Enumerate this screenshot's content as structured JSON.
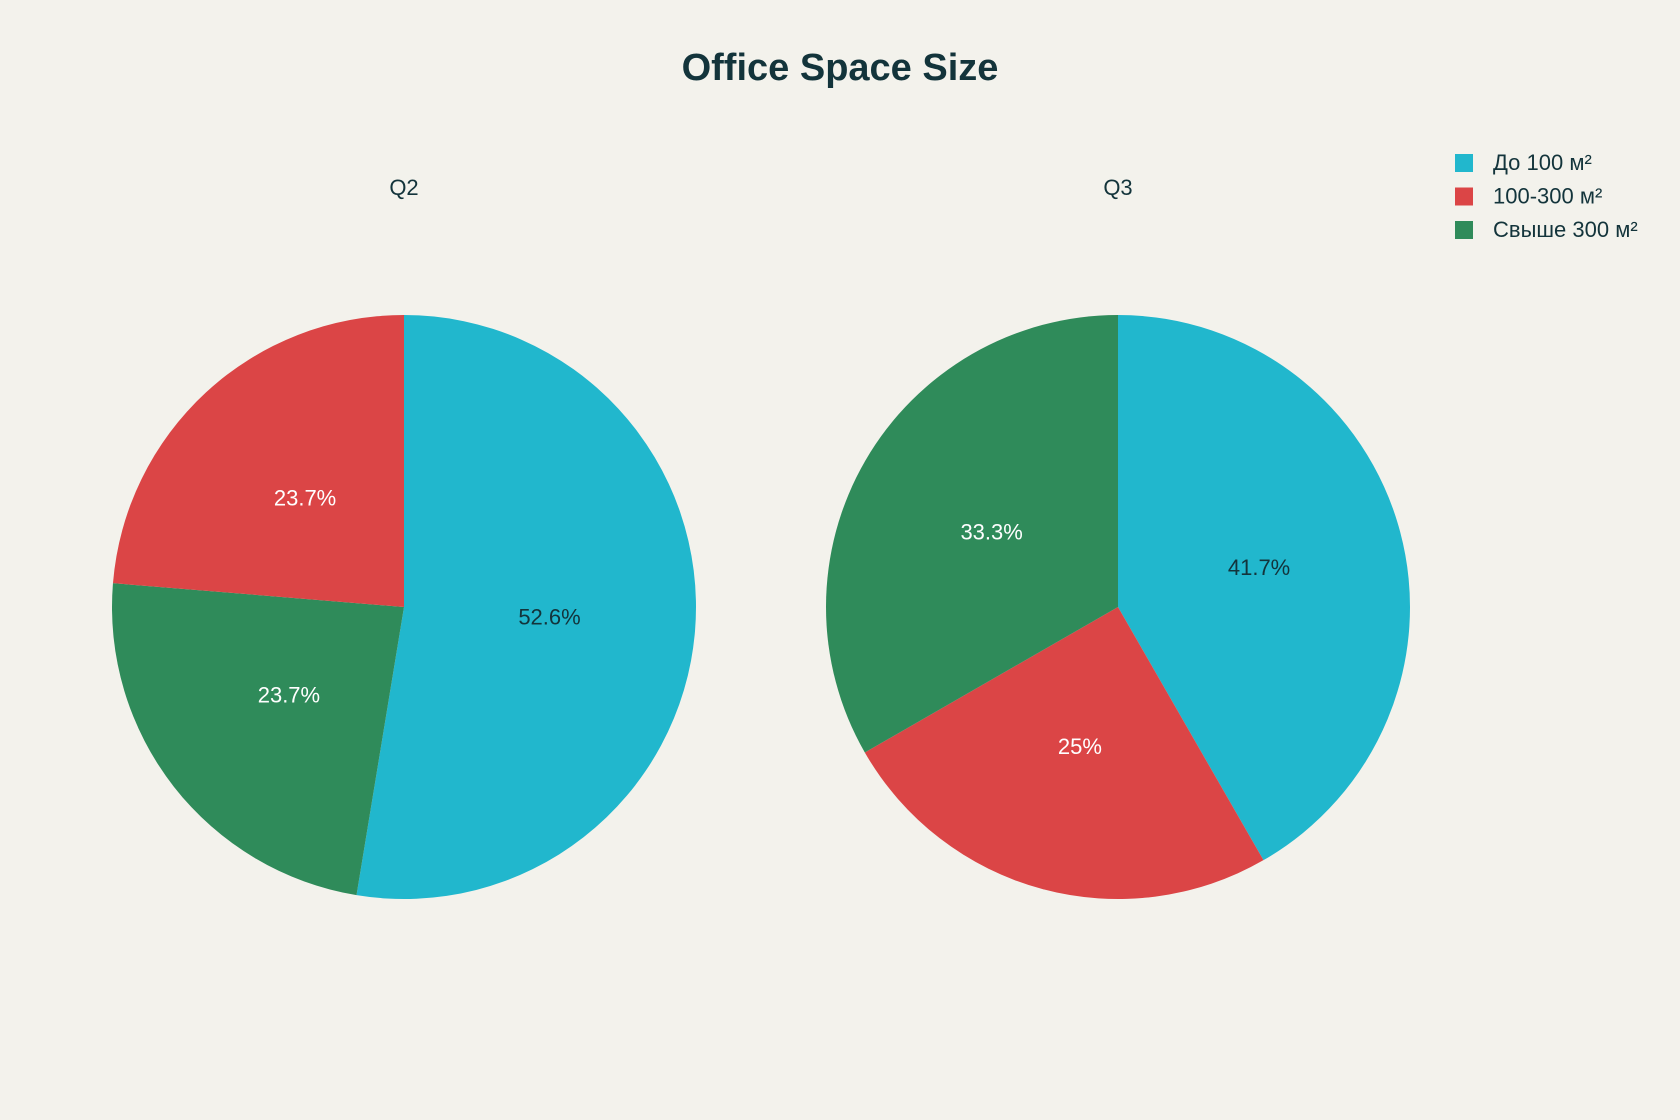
{
  "title": "Office Space Size",
  "chart_data": [
    {
      "type": "pie",
      "title": "Q2",
      "categories": [
        "До 100 м²",
        "Свыше 300 м²",
        "100-300 м²"
      ],
      "values": [
        52.6,
        23.7,
        23.7
      ],
      "value_labels": [
        "52.6%",
        "23.7%",
        "23.7%"
      ],
      "colors": [
        "#21b7cd",
        "#2f8b5a",
        "#db4546"
      ]
    },
    {
      "type": "pie",
      "title": "Q3",
      "categories": [
        "До 100 м²",
        "100-300 м²",
        "Свыше 300 м²"
      ],
      "values": [
        41.7,
        25,
        33.3
      ],
      "value_labels": [
        "41.7%",
        "25%",
        "33.3%"
      ],
      "colors": [
        "#21b7cd",
        "#db4546",
        "#2f8b5a"
      ]
    }
  ]
}
